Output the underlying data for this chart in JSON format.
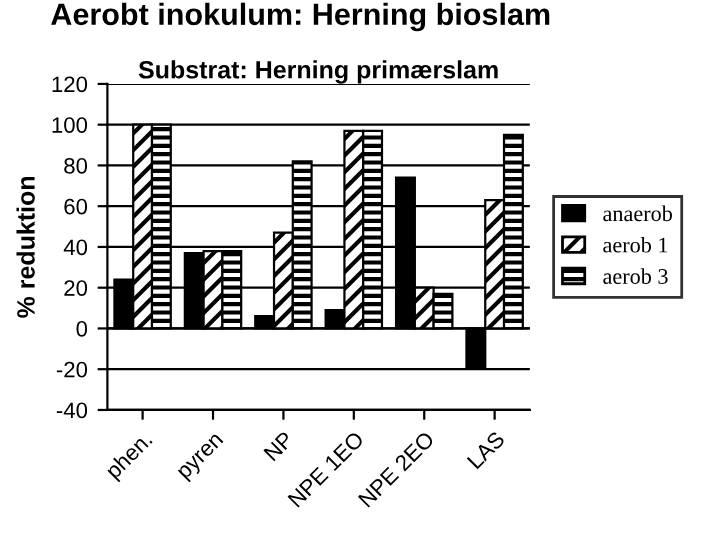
{
  "chart_data": {
    "type": "bar",
    "title": "Aerobt inokulum: Herning bioslam",
    "subtitle": "Substrat: Herning primærslam",
    "ylabel": "% reduktion",
    "categories": [
      "phen.",
      "pyren",
      "NP",
      "NPE 1EO",
      "NPE 2EO",
      "LAS"
    ],
    "series": [
      {
        "name": "anaerob",
        "color": "#000000",
        "values": [
          24,
          37,
          6,
          9,
          74,
          -19
        ]
      },
      {
        "name": "aerob 1",
        "color": "#000000",
        "values": [
          100,
          38,
          47,
          97,
          20,
          63
        ]
      },
      {
        "name": "aerob 3",
        "color": "#000000",
        "values": [
          100,
          38,
          82,
          97,
          17,
          95
        ]
      }
    ],
    "ylim": [
      -40,
      120
    ],
    "yticks": [
      -40,
      -20,
      0,
      20,
      40,
      60,
      80,
      100,
      120
    ],
    "grid": "y",
    "legend": "right"
  }
}
